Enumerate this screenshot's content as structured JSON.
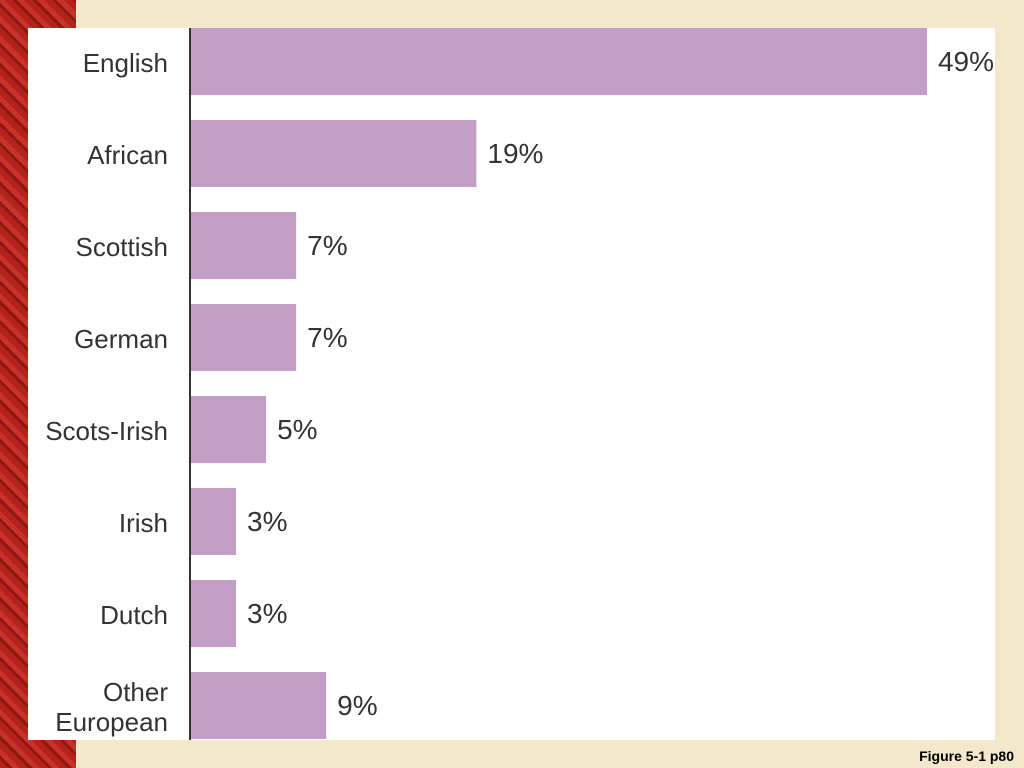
{
  "chart_data": {
    "type": "bar",
    "orientation": "horizontal",
    "categories": [
      "English",
      "African",
      "Scottish",
      "German",
      "Scots-Irish",
      "Irish",
      "Dutch",
      "Other European"
    ],
    "values": [
      49,
      19,
      7,
      7,
      5,
      3,
      3,
      9
    ],
    "value_labels": [
      "49%",
      "19%",
      "7%",
      "7%",
      "5%",
      "3%",
      "3%",
      "9%"
    ],
    "color": "#c29dc6"
  },
  "caption": "Figure 5-1 p80"
}
